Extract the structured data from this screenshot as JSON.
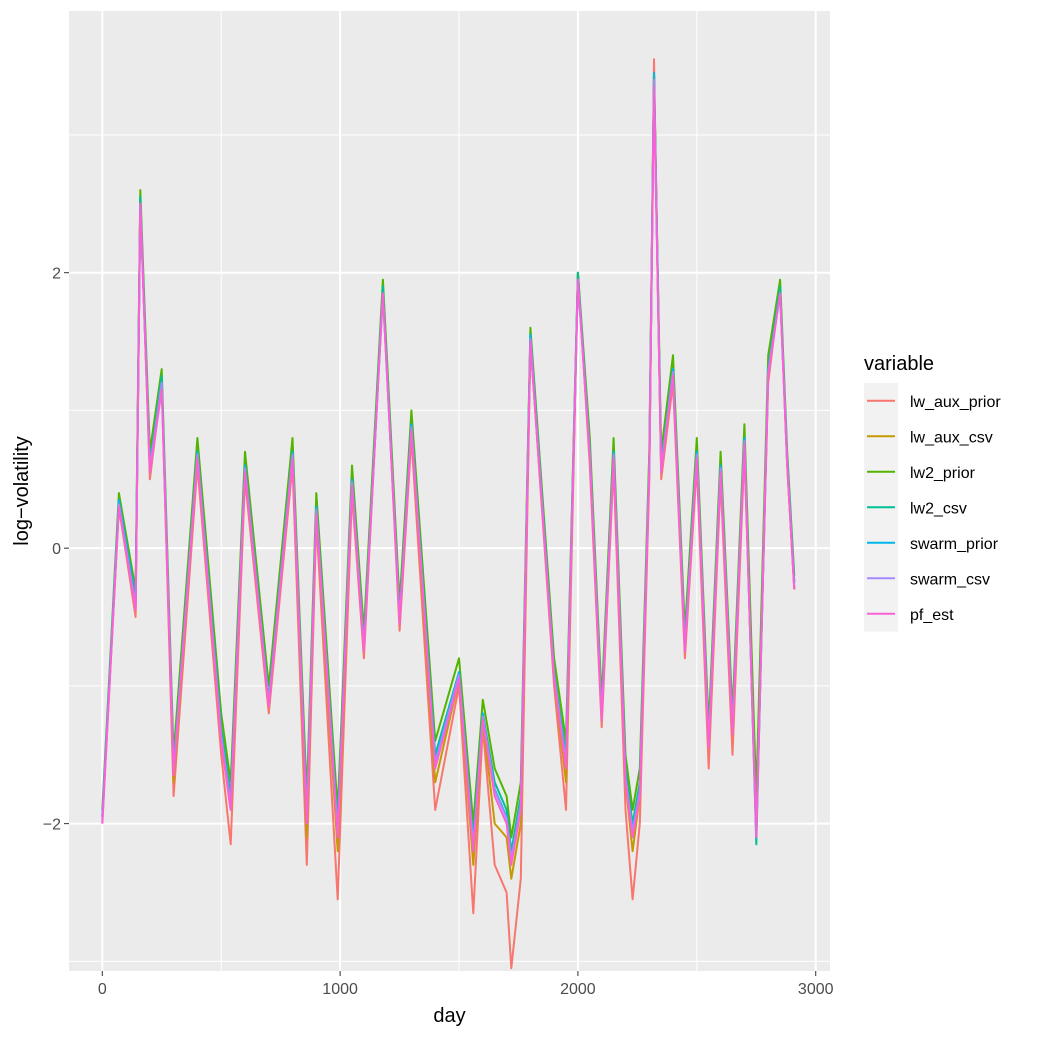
{
  "chart_data": {
    "type": "line",
    "xlabel": "day",
    "ylabel": "log−volatility",
    "xlim": [
      -140,
      3060
    ],
    "ylim": [
      -3.07,
      3.9
    ],
    "x_ticks": [
      0,
      1000,
      2000,
      3000
    ],
    "x_tick_labels": [
      "0",
      "1000",
      "2000",
      "3000"
    ],
    "y_ticks": [
      -2,
      0,
      2
    ],
    "y_tick_labels": [
      "−2",
      "0",
      "2"
    ],
    "grid": true,
    "panel_background": "#ebebeb",
    "legend": {
      "title": "variable",
      "position": "right"
    },
    "x": [
      0,
      70,
      140,
      160,
      200,
      250,
      300,
      400,
      500,
      540,
      600,
      700,
      800,
      860,
      900,
      990,
      1050,
      1100,
      1180,
      1250,
      1300,
      1400,
      1500,
      1560,
      1600,
      1650,
      1700,
      1720,
      1760,
      1800,
      1900,
      1950,
      2000,
      2050,
      2100,
      2150,
      2200,
      2230,
      2260,
      2300,
      2320,
      2350,
      2400,
      2450,
      2500,
      2550,
      2600,
      2650,
      2700,
      2750,
      2800,
      2850,
      2880,
      2910
    ],
    "series": [
      {
        "name": "lw_aux_prior",
        "color": "#F8766D",
        "values": [
          -2.0,
          0.3,
          -0.5,
          2.55,
          0.5,
          1.2,
          -1.8,
          0.6,
          -1.5,
          -2.15,
          0.5,
          -1.2,
          0.6,
          -2.3,
          0.2,
          -2.55,
          0.4,
          -0.8,
          1.9,
          -0.6,
          0.8,
          -1.9,
          -1.0,
          -2.65,
          -1.3,
          -2.3,
          -2.5,
          -3.05,
          -2.4,
          1.5,
          -1.0,
          -1.9,
          2.0,
          0.6,
          -1.3,
          0.6,
          -1.9,
          -2.55,
          -2.0,
          0.5,
          3.55,
          0.5,
          1.2,
          -0.8,
          0.6,
          -1.6,
          0.5,
          -1.5,
          0.7,
          -2.0,
          1.2,
          1.9,
          0.6,
          -0.3
        ]
      },
      {
        "name": "lw_aux_csv",
        "color": "#C49A00",
        "values": [
          -1.95,
          0.3,
          -0.45,
          2.55,
          0.55,
          1.2,
          -1.7,
          0.65,
          -1.4,
          -1.9,
          0.55,
          -1.15,
          0.65,
          -2.1,
          0.25,
          -2.2,
          0.45,
          -0.75,
          1.9,
          -0.55,
          0.85,
          -1.7,
          -0.95,
          -2.3,
          -1.25,
          -2.0,
          -2.1,
          -2.4,
          -2.0,
          1.5,
          -0.95,
          -1.7,
          2.0,
          0.65,
          -1.25,
          0.65,
          -1.7,
          -2.2,
          -1.8,
          0.55,
          3.45,
          0.55,
          1.25,
          -0.75,
          0.65,
          -1.45,
          0.55,
          -1.35,
          0.75,
          -1.9,
          1.25,
          1.9,
          0.6,
          -0.3
        ]
      },
      {
        "name": "lw2_prior",
        "color": "#53B400",
        "values": [
          -1.9,
          0.4,
          -0.3,
          2.6,
          0.7,
          1.3,
          -1.5,
          0.8,
          -1.2,
          -1.7,
          0.7,
          -1.0,
          0.8,
          -1.8,
          0.4,
          -1.9,
          0.6,
          -0.6,
          1.95,
          -0.4,
          1.0,
          -1.4,
          -0.8,
          -2.0,
          -1.1,
          -1.6,
          -1.8,
          -2.1,
          -1.7,
          1.6,
          -0.8,
          -1.4,
          2.0,
          0.8,
          -1.1,
          0.8,
          -1.5,
          -1.9,
          -1.6,
          0.7,
          3.45,
          0.7,
          1.4,
          -0.6,
          0.8,
          -1.3,
          0.7,
          -1.2,
          0.9,
          -1.8,
          1.4,
          1.95,
          0.7,
          -0.2
        ]
      },
      {
        "name": "lw2_csv",
        "color": "#00C094",
        "values": [
          -1.95,
          0.35,
          -0.35,
          2.55,
          0.6,
          1.25,
          -1.6,
          0.7,
          -1.3,
          -1.8,
          0.6,
          -1.1,
          0.7,
          -1.9,
          0.3,
          -2.0,
          0.5,
          -0.7,
          1.9,
          -0.5,
          0.9,
          -1.5,
          -0.9,
          -2.1,
          -1.2,
          -1.7,
          -1.9,
          -2.2,
          -1.8,
          1.55,
          -0.9,
          -1.5,
          2.0,
          0.7,
          -1.2,
          0.7,
          -1.6,
          -2.0,
          -1.7,
          0.6,
          3.4,
          0.6,
          1.3,
          -0.7,
          0.7,
          -1.4,
          0.6,
          -1.3,
          0.8,
          -2.15,
          1.3,
          1.9,
          0.65,
          -0.25
        ]
      },
      {
        "name": "swarm_prior",
        "color": "#00B6EB",
        "values": [
          -1.95,
          0.35,
          -0.4,
          2.5,
          0.6,
          1.2,
          -1.6,
          0.7,
          -1.35,
          -1.85,
          0.6,
          -1.1,
          0.7,
          -1.95,
          0.3,
          -2.05,
          0.5,
          -0.7,
          1.85,
          -0.5,
          0.9,
          -1.55,
          -0.9,
          -2.15,
          -1.2,
          -1.75,
          -1.95,
          -2.25,
          -1.85,
          1.55,
          -0.9,
          -1.55,
          1.95,
          0.7,
          -1.2,
          0.7,
          -1.65,
          -2.05,
          -1.75,
          0.6,
          3.45,
          0.6,
          1.3,
          -0.7,
          0.7,
          -1.4,
          0.6,
          -1.3,
          0.8,
          -2.1,
          1.3,
          1.85,
          0.65,
          -0.25
        ]
      },
      {
        "name": "swarm_csv",
        "color": "#A58AFF",
        "values": [
          -1.98,
          0.32,
          -0.42,
          2.5,
          0.58,
          1.2,
          -1.62,
          0.68,
          -1.36,
          -1.86,
          0.58,
          -1.12,
          0.68,
          -1.96,
          0.28,
          -2.06,
          0.48,
          -0.72,
          1.85,
          -0.52,
          0.88,
          -1.56,
          -0.92,
          -2.16,
          -1.22,
          -1.76,
          -1.96,
          -2.26,
          -1.86,
          1.52,
          -0.92,
          -1.56,
          1.95,
          0.68,
          -1.22,
          0.68,
          -1.66,
          -2.06,
          -1.76,
          0.58,
          3.4,
          0.58,
          1.28,
          -0.72,
          0.68,
          -1.42,
          0.58,
          -1.32,
          0.78,
          -2.08,
          1.28,
          1.85,
          0.62,
          -0.28
        ]
      },
      {
        "name": "pf_est",
        "color": "#FB61D7",
        "values": [
          -2.0,
          0.3,
          -0.45,
          2.5,
          0.55,
          1.15,
          -1.65,
          0.65,
          -1.4,
          -1.9,
          0.55,
          -1.15,
          0.65,
          -2.0,
          0.25,
          -2.1,
          0.45,
          -0.75,
          1.85,
          -0.55,
          0.85,
          -1.6,
          -0.95,
          -2.2,
          -1.25,
          -1.8,
          -2.0,
          -2.3,
          -1.9,
          1.5,
          -0.95,
          -1.6,
          1.95,
          0.65,
          -1.25,
          0.65,
          -1.7,
          -2.1,
          -1.8,
          0.55,
          3.35,
          0.55,
          1.25,
          -0.75,
          0.65,
          -1.45,
          0.55,
          -1.35,
          0.75,
          -2.1,
          1.25,
          1.85,
          0.6,
          -0.3
        ]
      }
    ]
  }
}
